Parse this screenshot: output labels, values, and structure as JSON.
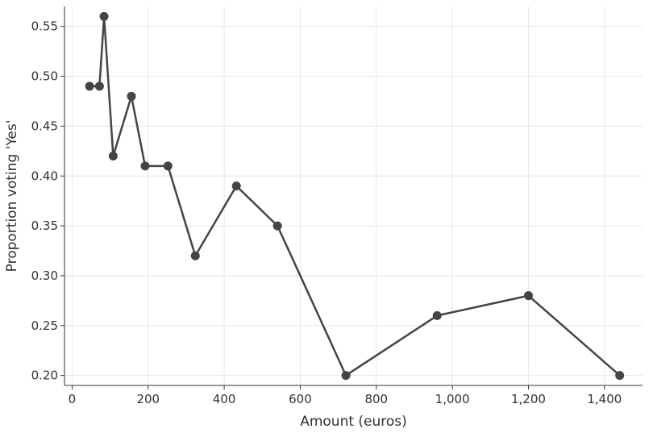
{
  "chart_data": {
    "type": "line",
    "title": "",
    "xlabel": "Amount (euros)",
    "ylabel": "Proportion voting 'Yes'",
    "xlim": [
      -20,
      1500
    ],
    "ylim": [
      0.19,
      0.57
    ],
    "x_ticks": [
      0,
      200,
      400,
      600,
      800,
      1000,
      1200,
      1400
    ],
    "x_tick_labels": [
      "0",
      "200",
      "400",
      "600",
      "800",
      "1,000",
      "1,200",
      "1,400"
    ],
    "y_ticks": [
      0.2,
      0.25,
      0.3,
      0.35,
      0.4,
      0.45,
      0.5,
      0.55
    ],
    "y_tick_labels": [
      "0.20",
      "0.25",
      "0.30",
      "0.35",
      "0.40",
      "0.45",
      "0.50",
      "0.55"
    ],
    "grid": true,
    "series": [
      {
        "color": "#444444",
        "x": [
          46,
          72,
          84,
          108,
          156,
          192,
          252,
          324,
          432,
          540,
          720,
          960,
          1200,
          1440
        ],
        "y": [
          0.49,
          0.49,
          0.56,
          0.42,
          0.48,
          0.41,
          0.41,
          0.32,
          0.39,
          0.35,
          0.2,
          0.26,
          0.28,
          0.2
        ]
      }
    ]
  }
}
